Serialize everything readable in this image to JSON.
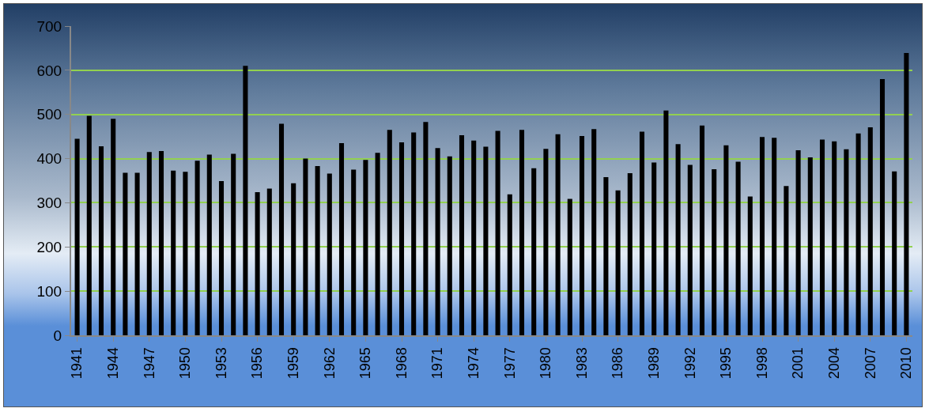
{
  "chart_data": {
    "type": "bar",
    "categories": [
      "1941",
      null,
      null,
      "1944",
      null,
      null,
      "1947",
      null,
      null,
      "1950",
      null,
      null,
      "1953",
      null,
      null,
      "1956",
      null,
      null,
      "1959",
      null,
      null,
      "1962",
      null,
      null,
      "1965",
      null,
      null,
      "1968",
      null,
      null,
      "1971",
      null,
      null,
      "1974",
      null,
      null,
      "1977",
      null,
      null,
      "1980",
      null,
      null,
      "1983",
      null,
      null,
      "1986",
      null,
      null,
      "1989",
      null,
      null,
      "1992",
      null,
      null,
      "1995",
      null,
      null,
      "1998",
      null,
      null,
      "2001",
      null,
      null,
      "2004",
      null,
      null,
      "2007",
      null,
      null,
      "2010"
    ],
    "values": [
      445,
      497,
      428,
      490,
      368,
      368,
      415,
      417,
      373,
      370,
      395,
      409,
      349,
      411,
      610,
      324,
      332,
      479,
      344,
      400,
      383,
      366,
      435,
      375,
      397,
      413,
      465,
      437,
      459,
      483,
      424,
      405,
      453,
      441,
      427,
      463,
      319,
      465,
      378,
      422,
      455,
      309,
      451,
      467,
      358,
      328,
      367,
      461,
      391,
      509,
      433,
      386,
      475,
      376,
      430,
      393,
      314,
      449,
      447,
      338,
      419,
      403,
      443,
      439,
      421,
      457,
      471,
      580,
      371,
      639
    ],
    "color": "#000000",
    "ylim": [
      0,
      700
    ],
    "yticks": [
      0,
      100,
      200,
      300,
      400,
      500,
      600,
      700
    ],
    "grid": "y"
  }
}
